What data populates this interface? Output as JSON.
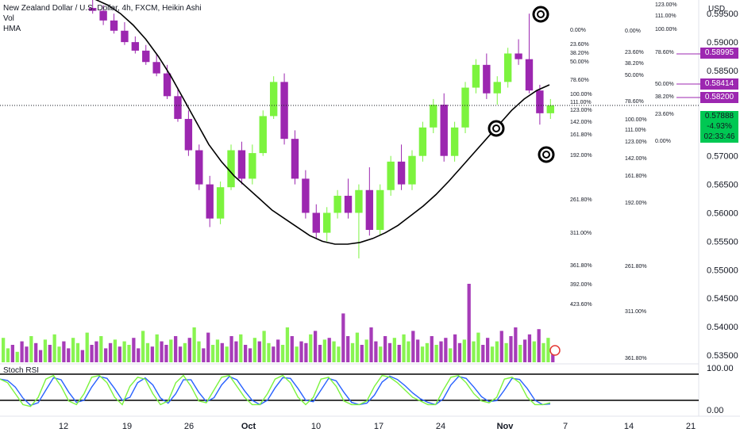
{
  "header": {
    "title": "New Zealand Dollar / U.S. Dollar, 4h, FXCM, Heikin Ashi",
    "indicator_vol": "Vol",
    "indicator_hma": "HMA",
    "currency": "USD",
    "stoch_label": "Stoch RSI"
  },
  "chart_data": {
    "type": "candlestick",
    "instrument": "New Zealand Dollar / U.S. Dollar",
    "timeframe": "4h",
    "price_axis": {
      "ticks": [
        "0.59500",
        "0.59000",
        "0.58500",
        "0.58000",
        "0.57500",
        "0.57000",
        "0.56500",
        "0.56000",
        "0.55500",
        "0.55000",
        "0.54500",
        "0.54000",
        "0.53500"
      ],
      "ylim": [
        0.5336,
        0.5974
      ]
    },
    "time_axis": {
      "ticks": [
        "12",
        "19",
        "26",
        "Oct",
        "10",
        "17",
        "24",
        "Nov",
        "7",
        "14",
        "21"
      ]
    },
    "candle_colors": {
      "up": "#7cf33e",
      "down": "#9c27b0"
    },
    "last_price": {
      "value": "0.57888",
      "change": "-4.93%",
      "countdown": "02:33:46"
    },
    "price_tags": [
      "0.58995",
      "0.58414",
      "0.58200"
    ],
    "ohlc_heikin_ashi_approx": [
      {
        "o": 0.596,
        "h": 0.5975,
        "l": 0.595,
        "c": 0.5955
      },
      {
        "o": 0.5955,
        "h": 0.5965,
        "l": 0.593,
        "c": 0.5938
      },
      {
        "o": 0.5938,
        "h": 0.595,
        "l": 0.5915,
        "c": 0.592
      },
      {
        "o": 0.592,
        "h": 0.5935,
        "l": 0.5895,
        "c": 0.59
      },
      {
        "o": 0.59,
        "h": 0.591,
        "l": 0.588,
        "c": 0.5885
      },
      {
        "o": 0.5885,
        "h": 0.5895,
        "l": 0.586,
        "c": 0.5865
      },
      {
        "o": 0.5865,
        "h": 0.588,
        "l": 0.584,
        "c": 0.5845
      },
      {
        "o": 0.5845,
        "h": 0.586,
        "l": 0.58,
        "c": 0.5805
      },
      {
        "o": 0.5805,
        "h": 0.582,
        "l": 0.576,
        "c": 0.5765
      },
      {
        "o": 0.5765,
        "h": 0.578,
        "l": 0.57,
        "c": 0.571
      },
      {
        "o": 0.571,
        "h": 0.572,
        "l": 0.564,
        "c": 0.565
      },
      {
        "o": 0.565,
        "h": 0.5665,
        "l": 0.5575,
        "c": 0.559
      },
      {
        "o": 0.559,
        "h": 0.5655,
        "l": 0.558,
        "c": 0.5645
      },
      {
        "o": 0.5645,
        "h": 0.572,
        "l": 0.564,
        "c": 0.571
      },
      {
        "o": 0.571,
        "h": 0.5725,
        "l": 0.565,
        "c": 0.566
      },
      {
        "o": 0.566,
        "h": 0.572,
        "l": 0.565,
        "c": 0.5705
      },
      {
        "o": 0.5705,
        "h": 0.578,
        "l": 0.57,
        "c": 0.577
      },
      {
        "o": 0.577,
        "h": 0.584,
        "l": 0.5765,
        "c": 0.583
      },
      {
        "o": 0.583,
        "h": 0.5845,
        "l": 0.572,
        "c": 0.573
      },
      {
        "o": 0.573,
        "h": 0.5745,
        "l": 0.565,
        "c": 0.566
      },
      {
        "o": 0.566,
        "h": 0.5675,
        "l": 0.559,
        "c": 0.56
      },
      {
        "o": 0.56,
        "h": 0.5615,
        "l": 0.5555,
        "c": 0.5565
      },
      {
        "o": 0.5565,
        "h": 0.561,
        "l": 0.555,
        "c": 0.56
      },
      {
        "o": 0.56,
        "h": 0.564,
        "l": 0.559,
        "c": 0.563
      },
      {
        "o": 0.563,
        "h": 0.566,
        "l": 0.559,
        "c": 0.56
      },
      {
        "o": 0.56,
        "h": 0.565,
        "l": 0.552,
        "c": 0.564
      },
      {
        "o": 0.564,
        "h": 0.568,
        "l": 0.556,
        "c": 0.557
      },
      {
        "o": 0.557,
        "h": 0.565,
        "l": 0.556,
        "c": 0.564
      },
      {
        "o": 0.564,
        "h": 0.57,
        "l": 0.563,
        "c": 0.569
      },
      {
        "o": 0.569,
        "h": 0.572,
        "l": 0.564,
        "c": 0.565
      },
      {
        "o": 0.565,
        "h": 0.571,
        "l": 0.564,
        "c": 0.57
      },
      {
        "o": 0.57,
        "h": 0.576,
        "l": 0.569,
        "c": 0.575
      },
      {
        "o": 0.575,
        "h": 0.58,
        "l": 0.574,
        "c": 0.579
      },
      {
        "o": 0.579,
        "h": 0.581,
        "l": 0.569,
        "c": 0.57
      },
      {
        "o": 0.57,
        "h": 0.576,
        "l": 0.569,
        "c": 0.575
      },
      {
        "o": 0.575,
        "h": 0.583,
        "l": 0.574,
        "c": 0.582
      },
      {
        "o": 0.582,
        "h": 0.587,
        "l": 0.581,
        "c": 0.586
      },
      {
        "o": 0.586,
        "h": 0.588,
        "l": 0.58,
        "c": 0.581
      },
      {
        "o": 0.581,
        "h": 0.584,
        "l": 0.579,
        "c": 0.583
      },
      {
        "o": 0.583,
        "h": 0.589,
        "l": 0.582,
        "c": 0.588
      },
      {
        "o": 0.588,
        "h": 0.5905,
        "l": 0.586,
        "c": 0.587
      },
      {
        "o": 0.587,
        "h": 0.595,
        "l": 0.581,
        "c": 0.5815
      },
      {
        "o": 0.5815,
        "h": 0.5825,
        "l": 0.5755,
        "c": 0.5775
      },
      {
        "o": 0.5775,
        "h": 0.58,
        "l": 0.5765,
        "c": 0.5789
      }
    ],
    "hma": [
      0.5975,
      0.5965,
      0.595,
      0.593,
      0.5905,
      0.5875,
      0.584,
      0.58,
      0.576,
      0.572,
      0.569,
      0.5665,
      0.5645,
      0.5625,
      0.5605,
      0.559,
      0.5575,
      0.556,
      0.555,
      0.5545,
      0.5545,
      0.5548,
      0.5555,
      0.5565,
      0.5578,
      0.5595,
      0.5612,
      0.5632,
      0.5655,
      0.568,
      0.5705,
      0.573,
      0.5755,
      0.578,
      0.58,
      0.5815,
      0.5825
    ],
    "fib_labels_left": [
      "0.00%",
      "23.60%",
      "38.20%",
      "50.00%",
      "78.60%",
      "100.00%",
      "111.00%",
      "123.00%",
      "142.00%",
      "161.80%",
      "192.00%",
      "261.80%",
      "311.00%",
      "361.80%",
      "392.00%",
      "423.60%"
    ],
    "fib_labels_mid": [
      "0.00%",
      "23.60%",
      "38.20%",
      "50.00%",
      "78.60%",
      "100.00%",
      "111.00%",
      "123.00%",
      "142.00%",
      "161.80%",
      "192.00%",
      "261.80%",
      "311.00%",
      "361.80%"
    ],
    "fib_labels_right": [
      "123.00%",
      "111.00%",
      "100.00%",
      "78.60%",
      "50.00%",
      "38.20%",
      "23.60%",
      "0.00%"
    ],
    "volume": [
      14,
      8,
      10,
      6,
      12,
      9,
      15,
      11,
      7,
      13,
      10,
      16,
      9,
      12,
      8,
      14,
      11,
      7,
      17,
      10,
      12,
      15,
      8,
      11,
      13,
      9,
      12,
      10,
      14,
      8,
      18,
      11,
      9,
      16,
      12,
      10,
      13,
      15,
      9,
      11,
      14,
      20,
      12,
      8,
      17,
      10,
      13,
      11,
      9,
      15,
      12,
      16,
      10,
      8,
      14,
      12,
      18,
      11,
      9,
      13,
      10,
      20,
      15,
      9,
      12,
      11,
      16,
      18,
      10,
      13,
      14,
      12,
      9,
      28,
      15,
      11,
      17,
      10,
      13,
      20,
      12,
      9,
      15,
      11,
      14,
      10,
      16,
      12,
      18,
      13,
      9,
      11,
      15,
      10,
      12,
      14,
      8,
      16,
      11,
      13,
      45,
      12,
      17,
      10,
      14,
      9,
      12,
      18,
      11,
      15,
      20,
      10,
      13,
      16,
      12,
      19,
      11,
      14,
      8
    ],
    "stoch_rsi": {
      "ticks": [
        "100.00",
        "0.00"
      ],
      "k": [
        80,
        70,
        40,
        10,
        5,
        30,
        80,
        90,
        60,
        20,
        10,
        40,
        85,
        90,
        70,
        30,
        10,
        60,
        85,
        80,
        40,
        10,
        20,
        70,
        90,
        60,
        20,
        15,
        50,
        85,
        90,
        60,
        30,
        10,
        10,
        40,
        80,
        90,
        70,
        30,
        10,
        30,
        80,
        85,
        60,
        20,
        10,
        10,
        20,
        60,
        90,
        85,
        70,
        50,
        30,
        20,
        10,
        10,
        50,
        85,
        90,
        70,
        40,
        20,
        15,
        30,
        80,
        85,
        70,
        30,
        10,
        10,
        15
      ]
    },
    "targets": [
      {
        "label": "top"
      },
      {
        "label": "mid"
      },
      {
        "label": "low"
      }
    ]
  }
}
